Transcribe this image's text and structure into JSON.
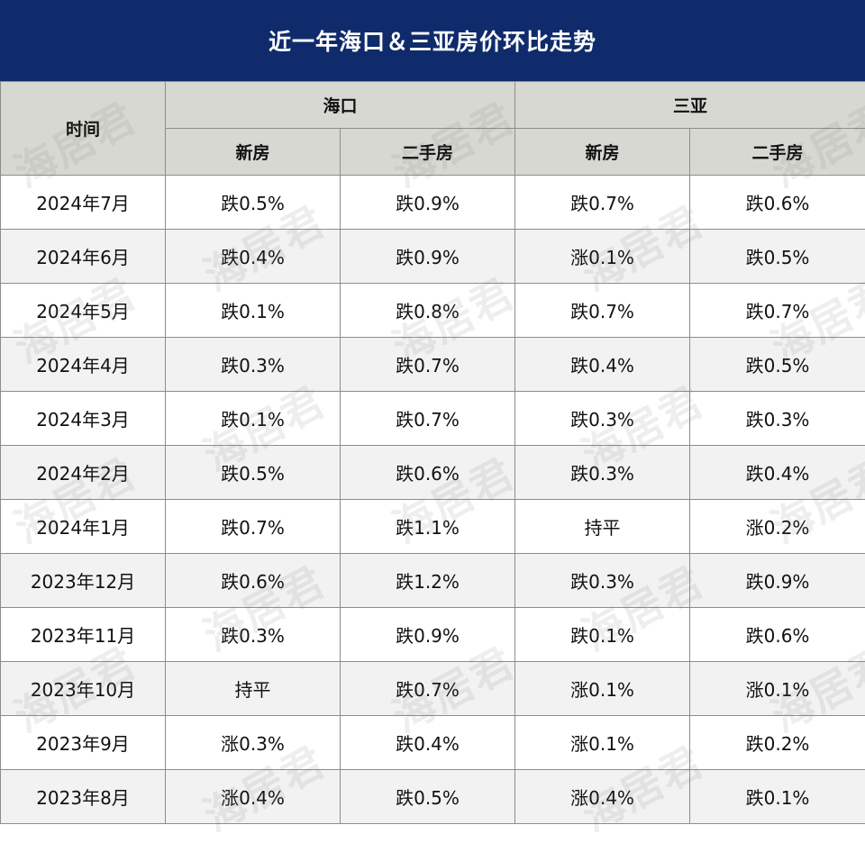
{
  "title": "近一年海口＆三亚房价环比走势",
  "header": {
    "time": "时间",
    "cities": [
      "海口",
      "三亚"
    ],
    "types": [
      "新房",
      "二手房",
      "新房",
      "二手房"
    ]
  },
  "rows": [
    {
      "month": "2024年7月",
      "values": [
        "跌0.5%",
        "跌0.9%",
        "跌0.7%",
        "跌0.6%"
      ]
    },
    {
      "month": "2024年6月",
      "values": [
        "跌0.4%",
        "跌0.9%",
        "涨0.1%",
        "跌0.5%"
      ]
    },
    {
      "month": "2024年5月",
      "values": [
        "跌0.1%",
        "跌0.8%",
        "跌0.7%",
        "跌0.7%"
      ]
    },
    {
      "month": "2024年4月",
      "values": [
        "跌0.3%",
        "跌0.7%",
        "跌0.4%",
        "跌0.5%"
      ]
    },
    {
      "month": "2024年3月",
      "values": [
        "跌0.1%",
        "跌0.7%",
        "跌0.3%",
        "跌0.3%"
      ]
    },
    {
      "month": "2024年2月",
      "values": [
        "跌0.5%",
        "跌0.6%",
        "跌0.3%",
        "跌0.4%"
      ]
    },
    {
      "month": "2024年1月",
      "values": [
        "跌0.7%",
        "跌1.1%",
        "持平",
        "涨0.2%"
      ]
    },
    {
      "month": "2023年12月",
      "values": [
        "跌0.6%",
        "跌1.2%",
        "跌0.3%",
        "跌0.9%"
      ]
    },
    {
      "month": "2023年11月",
      "values": [
        "跌0.3%",
        "跌0.9%",
        "跌0.1%",
        "跌0.6%"
      ]
    },
    {
      "month": "2023年10月",
      "values": [
        "持平",
        "跌0.7%",
        "涨0.1%",
        "涨0.1%"
      ]
    },
    {
      "month": "2023年9月",
      "values": [
        "涨0.3%",
        "跌0.4%",
        "涨0.1%",
        "跌0.2%"
      ]
    },
    {
      "month": "2023年8月",
      "values": [
        "涨0.4%",
        "跌0.5%",
        "涨0.4%",
        "跌0.1%"
      ]
    }
  ],
  "watermark": "海居君"
}
